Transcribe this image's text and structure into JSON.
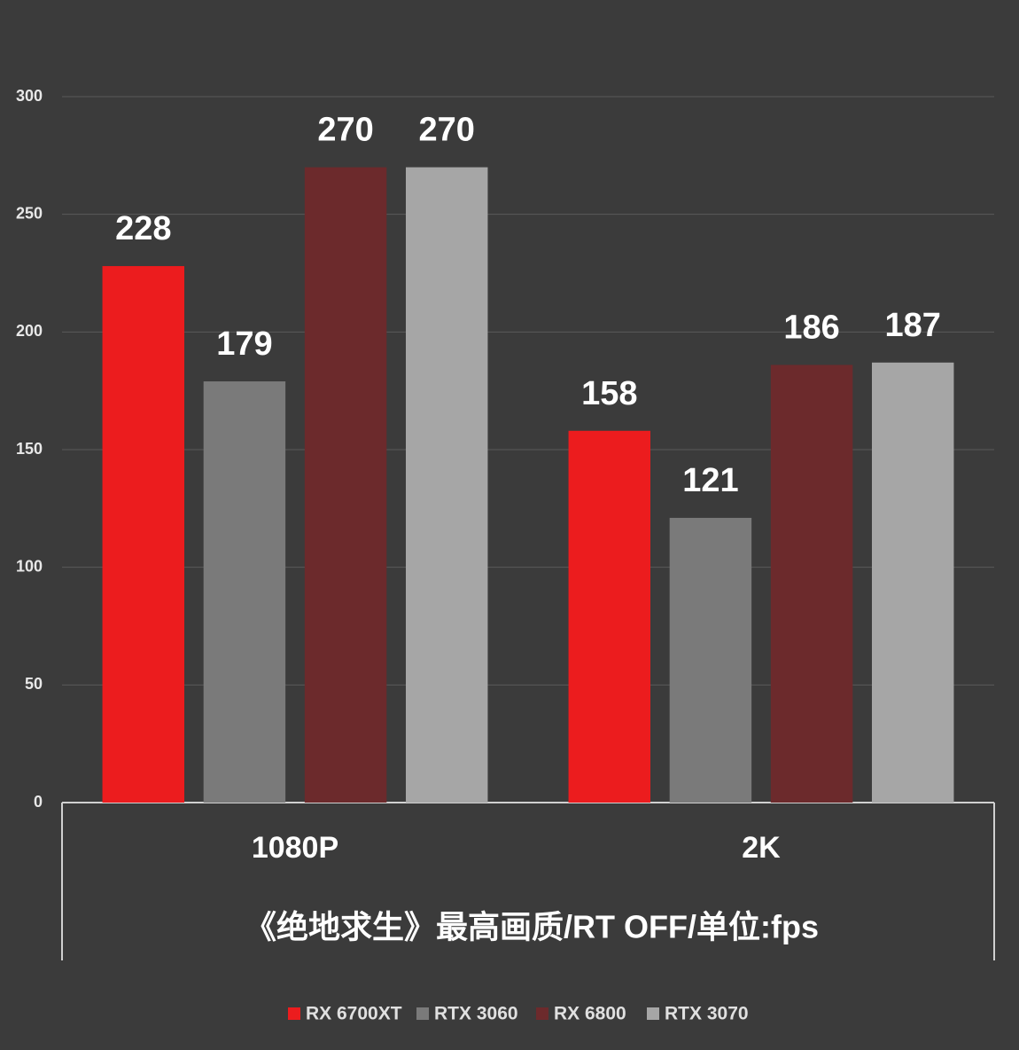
{
  "chart_data": {
    "type": "bar",
    "title": "《绝地求生》最高画质/RT OFF/单位:fps",
    "categories": [
      "1080P",
      "2K"
    ],
    "series": [
      {
        "name": "RX 6700XT",
        "color": "#ec1c1e",
        "values": [
          228,
          158
        ]
      },
      {
        "name": "RTX 3060",
        "color": "#7a7a7a",
        "values": [
          179,
          121
        ]
      },
      {
        "name": "RX 6800",
        "color": "#6c2a2c",
        "values": [
          270,
          186
        ]
      },
      {
        "name": "RTX 3070",
        "color": "#a6a6a6",
        "values": [
          270,
          187
        ]
      }
    ],
    "ylim": [
      0,
      300
    ],
    "yticks": [
      0,
      50,
      100,
      150,
      200,
      250,
      300
    ],
    "grid": true,
    "legend": "bottom"
  }
}
